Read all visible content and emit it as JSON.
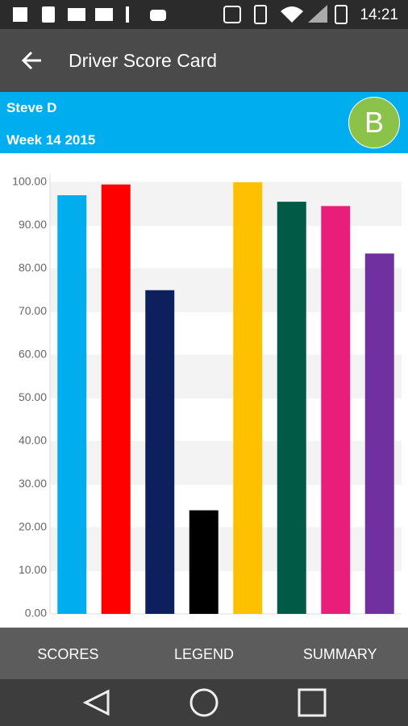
{
  "status_bar": {
    "time": "14:21"
  },
  "app_bar": {
    "title": "Driver Score Card"
  },
  "header": {
    "driver": "Steve D",
    "week": "Week 14 2015",
    "grade": "B"
  },
  "chart_data": {
    "type": "bar",
    "categories": [
      null,
      null,
      null,
      null,
      null,
      null,
      null,
      null
    ],
    "values": [
      97,
      99.5,
      75,
      24,
      100,
      95.5,
      94.5,
      83.5
    ],
    "colors": [
      "#00aeef",
      "#ff0000",
      "#0d1f5c",
      "#000000",
      "#ffc000",
      "#005a45",
      "#e91e7a",
      "#7030a0"
    ],
    "ylim": [
      0,
      100
    ],
    "yticks": [
      {
        "value": 0,
        "label": "0.00"
      },
      {
        "value": 10,
        "label": "10.00"
      },
      {
        "value": 20,
        "label": "20.00"
      },
      {
        "value": 30,
        "label": "30.00"
      },
      {
        "value": 40,
        "label": "40.00"
      },
      {
        "value": 50,
        "label": "50.00"
      },
      {
        "value": 60,
        "label": "60.00"
      },
      {
        "value": 70,
        "label": "70.00"
      },
      {
        "value": 80,
        "label": "80.00"
      },
      {
        "value": 90,
        "label": "90.00"
      },
      {
        "value": 100,
        "label": "100.00"
      }
    ],
    "grid": true
  },
  "tabs": [
    "SCORES",
    "LEGEND",
    "SUMMARY"
  ]
}
